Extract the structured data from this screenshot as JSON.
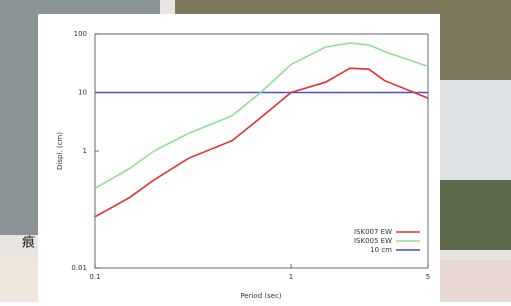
{
  "background_text": "痕",
  "chart_data": {
    "type": "line",
    "x_label": "Period (sec)",
    "y_label": "Displ. (cm)",
    "log_x": true,
    "log_y": true,
    "x": [
      0.1,
      0.15,
      0.2,
      0.3,
      0.5,
      0.7,
      1,
      1.5,
      2,
      2.5,
      3,
      5
    ],
    "xlim": [
      0.1,
      5
    ],
    "xticks": [
      0.1,
      1,
      5
    ],
    "ylim": [
      0.01,
      100
    ],
    "yticks": [
      0.01,
      1,
      10,
      100
    ],
    "legend": "lower right",
    "series": [
      {
        "name": "ISK007 EW",
        "color": "#e03030",
        "values": [
          0.075,
          0.16,
          0.32,
          0.75,
          1.5,
          3.7,
          10,
          15,
          26,
          25,
          16,
          8
        ]
      },
      {
        "name": "ISK005 EW",
        "color": "#90e090",
        "values": [
          0.23,
          0.5,
          1.0,
          2,
          4,
          10,
          30,
          60,
          70,
          65,
          50,
          28
        ]
      },
      {
        "name": "10 cm",
        "color": "#4a4ae0",
        "values": [
          10,
          10,
          10,
          10,
          10,
          10,
          10,
          10,
          10,
          10,
          10,
          10
        ]
      }
    ]
  }
}
